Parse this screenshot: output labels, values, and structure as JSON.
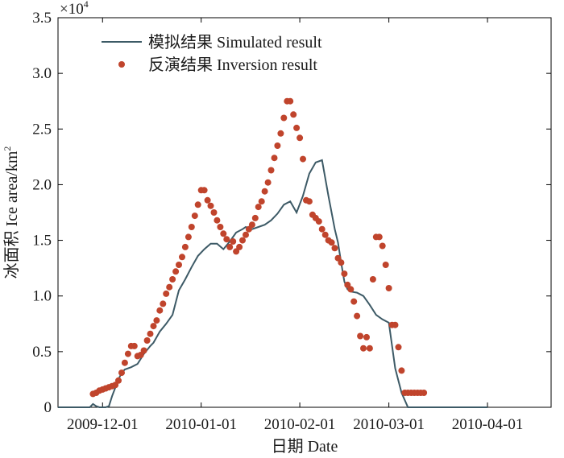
{
  "chart_data": {
    "type": "line",
    "title": "",
    "xlabel": "日期 Date",
    "ylabel": "冰面积 Ice area/km²",
    "ylabel_main": "冰面积 Ice area/km",
    "ylabel_sup": "2",
    "y_multiplier_base": "×10",
    "y_multiplier_exp": "4",
    "x_ticks": [
      "2009-12-01",
      "2010-01-01",
      "2010-02-01",
      "2010-03-01",
      "2010-04-01"
    ],
    "y_ticks": [
      "0",
      "0.5",
      "1.0",
      "1.5",
      "2.0",
      "2.5",
      "3.0",
      "3.5"
    ],
    "xlim": [
      "2009-11-17",
      "2010-04-21"
    ],
    "ylim": [
      0,
      35000
    ],
    "grid": false,
    "legend_position": "top-left",
    "series": [
      {
        "name": "模拟结果 Simulated result",
        "style": "line",
        "color": "#3d5a66",
        "x": [
          "2009-11-17",
          "2009-11-27",
          "2009-11-28",
          "2009-11-29",
          "2009-11-30",
          "2009-12-01",
          "2009-12-02",
          "2009-12-03",
          "2009-12-04",
          "2009-12-06",
          "2009-12-07",
          "2009-12-08",
          "2009-12-10",
          "2009-12-12",
          "2009-12-14",
          "2009-12-16",
          "2009-12-17",
          "2009-12-19",
          "2009-12-21",
          "2009-12-23",
          "2009-12-25",
          "2009-12-27",
          "2009-12-29",
          "2009-12-31",
          "2010-01-02",
          "2010-01-04",
          "2010-01-06",
          "2010-01-08",
          "2010-01-10",
          "2010-01-12",
          "2010-01-14",
          "2010-01-15",
          "2010-01-17",
          "2010-01-19",
          "2010-01-21",
          "2010-01-23",
          "2010-01-25",
          "2010-01-27",
          "2010-01-29",
          "2010-01-31",
          "2010-02-02",
          "2010-02-04",
          "2010-02-06",
          "2010-02-08",
          "2010-02-10",
          "2010-02-12",
          "2010-02-13",
          "2010-02-14",
          "2010-02-15",
          "2010-02-16",
          "2010-02-17",
          "2010-02-19",
          "2010-02-21",
          "2010-02-23",
          "2010-02-25",
          "2010-02-27",
          "2010-03-01",
          "2010-03-03",
          "2010-03-05",
          "2010-03-07",
          "2010-03-09",
          "2010-03-11",
          "2010-03-13",
          "2010-03-15",
          "2010-03-17",
          "2010-04-01"
        ],
        "y": [
          0,
          0,
          300,
          100,
          0,
          0,
          0,
          100,
          1000,
          2500,
          3100,
          3400,
          3600,
          3900,
          4800,
          5500,
          5800,
          6800,
          7500,
          8300,
          10500,
          11500,
          12600,
          13600,
          14200,
          14700,
          14700,
          14200,
          14900,
          15700,
          16000,
          16200,
          16000,
          16200,
          16400,
          16800,
          17400,
          18200,
          18500,
          17500,
          19000,
          21000,
          22000,
          22200,
          19000,
          16000,
          14800,
          13000,
          11300,
          10600,
          10400,
          10300,
          10000,
          9200,
          8300,
          7900,
          7600,
          3500,
          1300,
          0,
          0,
          0,
          0,
          0,
          0,
          0
        ]
      },
      {
        "name": "反演结果 Inversion result",
        "style": "scatter",
        "color": "#c0442c",
        "x": [
          "2009-11-28",
          "2009-11-29",
          "2009-11-30",
          "2009-12-01",
          "2009-12-02",
          "2009-12-03",
          "2009-12-04",
          "2009-12-05",
          "2009-12-06",
          "2009-12-07",
          "2009-12-08",
          "2009-12-09",
          "2009-12-10",
          "2009-12-11",
          "2009-12-12",
          "2009-12-13",
          "2009-12-14",
          "2009-12-15",
          "2009-12-16",
          "2009-12-17",
          "2009-12-18",
          "2009-12-19",
          "2009-12-20",
          "2009-12-21",
          "2009-12-22",
          "2009-12-23",
          "2009-12-24",
          "2009-12-25",
          "2009-12-26",
          "2009-12-27",
          "2009-12-28",
          "2009-12-29",
          "2009-12-30",
          "2009-12-31",
          "2010-01-01",
          "2010-01-02",
          "2010-01-03",
          "2010-01-04",
          "2010-01-05",
          "2010-01-06",
          "2010-01-07",
          "2010-01-08",
          "2010-01-09",
          "2010-01-10",
          "2010-01-11",
          "2010-01-12",
          "2010-01-13",
          "2010-01-14",
          "2010-01-15",
          "2010-01-16",
          "2010-01-17",
          "2010-01-18",
          "2010-01-19",
          "2010-01-20",
          "2010-01-21",
          "2010-01-22",
          "2010-01-23",
          "2010-01-24",
          "2010-01-25",
          "2010-01-26",
          "2010-01-27",
          "2010-01-28",
          "2010-01-29",
          "2010-01-30",
          "2010-01-31",
          "2010-02-01",
          "2010-02-02",
          "2010-02-03",
          "2010-02-04",
          "2010-02-05",
          "2010-02-06",
          "2010-02-07",
          "2010-02-08",
          "2010-02-09",
          "2010-02-10",
          "2010-02-11",
          "2010-02-12",
          "2010-02-13",
          "2010-02-14",
          "2010-02-15",
          "2010-02-16",
          "2010-02-17",
          "2010-02-18",
          "2010-02-19",
          "2010-02-20",
          "2010-02-21",
          "2010-02-22",
          "2010-02-23",
          "2010-02-24",
          "2010-02-25",
          "2010-02-26",
          "2010-02-27",
          "2010-02-28",
          "2010-03-01",
          "2010-03-02",
          "2010-03-03",
          "2010-03-04",
          "2010-03-05",
          "2010-03-06",
          "2010-03-07",
          "2010-03-08",
          "2010-03-09",
          "2010-03-10",
          "2010-03-11",
          "2010-03-12"
        ],
        "y": [
          1200,
          1300,
          1500,
          1600,
          1700,
          1800,
          1900,
          2000,
          2400,
          3100,
          4000,
          4800,
          5500,
          5500,
          4600,
          4700,
          5100,
          6000,
          6600,
          7300,
          7800,
          8700,
          9300,
          10200,
          10800,
          11500,
          12200,
          12800,
          13500,
          14400,
          15300,
          16200,
          17200,
          18200,
          19500,
          19500,
          18600,
          18100,
          17500,
          16800,
          16200,
          15600,
          15100,
          14400,
          14900,
          14000,
          14400,
          15000,
          15500,
          16000,
          16400,
          17000,
          18000,
          18500,
          19400,
          20200,
          21300,
          22400,
          23500,
          24600,
          26000,
          27500,
          27500,
          26300,
          25100,
          24200,
          22300,
          18600,
          18500,
          17300,
          17000,
          16700,
          16000,
          15500,
          15000,
          14800,
          14300,
          13400,
          13000,
          12000,
          11000,
          10600,
          9500,
          8200,
          6400,
          5300,
          6300,
          5300,
          11500,
          15300,
          15300,
          14500,
          12800,
          10700,
          7400,
          7400,
          5400,
          3300,
          1300,
          1300,
          1300,
          1300,
          1300,
          1300,
          1300
        ]
      }
    ]
  }
}
